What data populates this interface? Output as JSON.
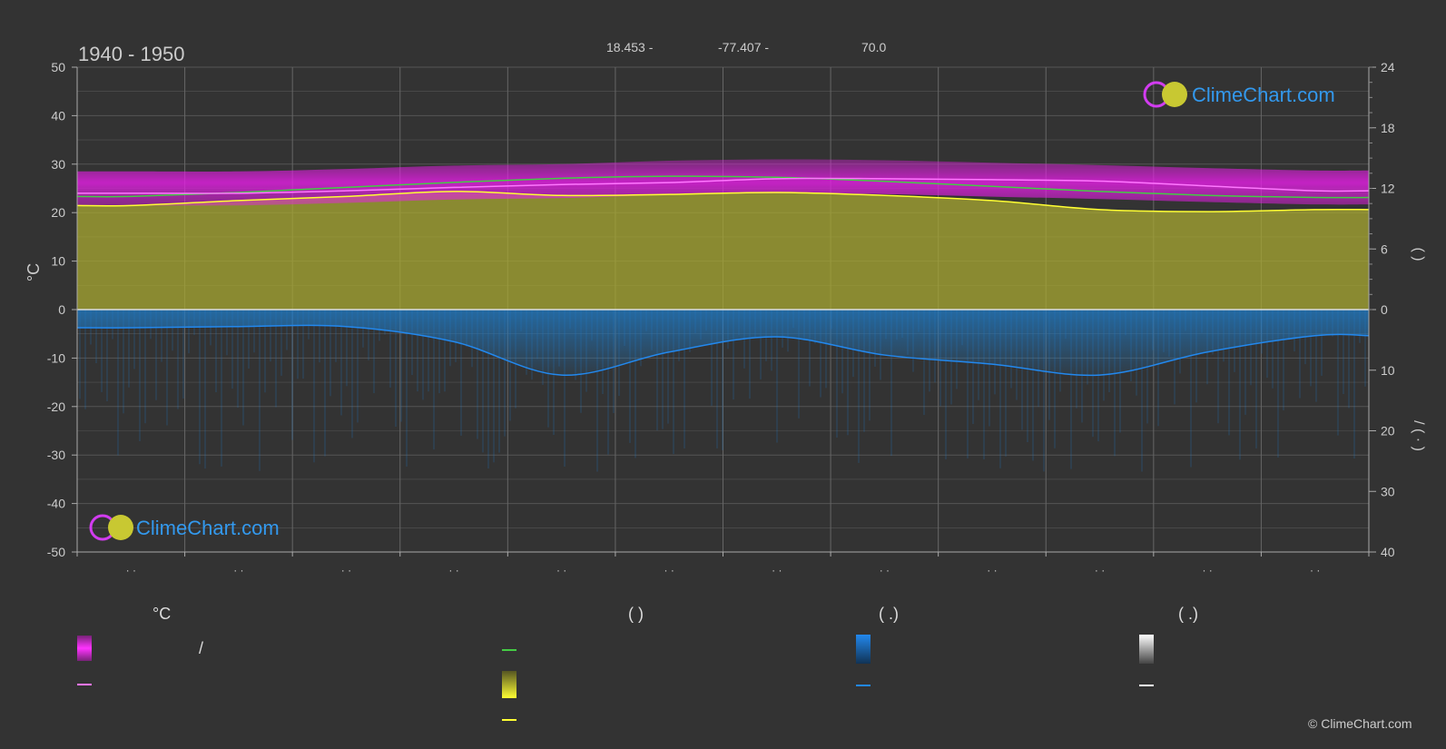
{
  "header": {
    "period": "1940 - 1950",
    "lat": "18.453 -",
    "lon": "-77.407 -",
    "elev": "70.0"
  },
  "axes": {
    "left_unit": "°C",
    "left_ticks": [
      "50",
      "40",
      "30",
      "20",
      "10",
      "0",
      "-10",
      "-20",
      "-30",
      "-40",
      "-50"
    ],
    "right_top_ticks": [
      "24",
      "18",
      "12",
      "6",
      "0"
    ],
    "right_bottom_ticks": [
      "10",
      "20",
      "30",
      "40"
    ],
    "right_unit_top": "(  )",
    "right_unit_bottom": "/ ( · )",
    "month_labels": [
      "· ·",
      "· ·",
      "· ·",
      "· ·",
      "· ·",
      "· ·",
      "· ·",
      "· ·",
      "· ·",
      "· ·",
      "· ·",
      "· ·"
    ]
  },
  "brand": {
    "name": "ClimeChart.com",
    "copyright": "© ClimeChart.com"
  },
  "legend": {
    "col1_title": "°C",
    "col1_item1": "/",
    "col2_title": "(          )",
    "col3_title": "(   .)",
    "col4_title": "(   .)"
  },
  "colors": {
    "background": "#333333",
    "max_band": "#e81ee8",
    "sunshine_fill": "#a8a832",
    "daylight_line": "#44cc44",
    "mean_temp_line": "#ff77ff",
    "sunshine_line": "#ffff33",
    "precip": "#1f7cc8",
    "snow": "#dddddd",
    "brand_blue": "#3399ee"
  },
  "chart_data": {
    "type": "area",
    "x": [
      "1",
      "2",
      "3",
      "4",
      "5",
      "6",
      "7",
      "8",
      "9",
      "10",
      "11",
      "12"
    ],
    "ylim": [
      -50,
      50
    ],
    "y2_top_lim": [
      0,
      24
    ],
    "y2_bottom_lim": [
      0,
      40
    ],
    "series": [
      {
        "values": [
          25.0,
          25.0,
          25.5,
          26.2,
          26.5,
          27.2,
          27.5,
          27.3,
          26.8,
          26.3,
          25.7,
          25.2
        ]
      },
      {
        "values": [
          24.0,
          24.0,
          24.5,
          25.2,
          25.8,
          26.2,
          27.0,
          27.0,
          26.8,
          26.5,
          25.5,
          24.5
        ]
      },
      {
        "values": [
          11.2,
          11.6,
          12.1,
          12.6,
          13.0,
          13.2,
          13.1,
          12.7,
          12.2,
          11.7,
          11.3,
          11.1
        ]
      },
      {
        "values": [
          10.3,
          10.8,
          11.2,
          11.7,
          11.3,
          11.4,
          11.6,
          11.3,
          10.8,
          9.9,
          9.7,
          9.9
        ]
      },
      {
        "values": [
          3.0,
          2.8,
          2.8,
          5.3,
          10.8,
          7.0,
          4.5,
          7.5,
          9.0,
          10.8,
          7.0,
          4.3
        ]
      }
    ]
  }
}
